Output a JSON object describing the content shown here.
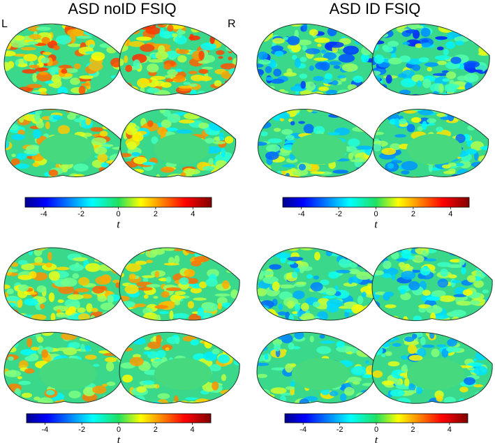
{
  "panels": [
    {
      "title": "ASD noID FSIQ",
      "hemi_left": "L",
      "hemi_right": "R"
    },
    {
      "title": "ASD ID FSIQ"
    }
  ],
  "colorbars": [
    {
      "lim": [
        -5,
        5
      ],
      "ticks": [
        -4,
        -2,
        0,
        2,
        4
      ],
      "label": "t"
    },
    {
      "lim": [
        -5,
        5
      ],
      "ticks": [
        -4,
        -2,
        0,
        2,
        4
      ],
      "label": "t"
    },
    {
      "lim": [
        -5,
        5
      ],
      "ticks": [
        -4,
        -2,
        0,
        2,
        4
      ],
      "label": "t"
    },
    {
      "lim": [
        -5,
        5
      ],
      "ticks": [
        -4,
        -2,
        0,
        2,
        4
      ],
      "label": "t"
    }
  ]
}
